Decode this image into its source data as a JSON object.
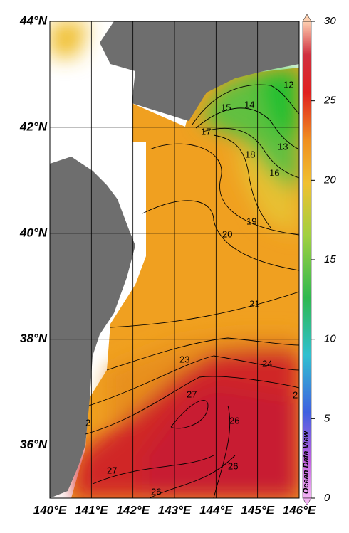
{
  "map": {
    "lon_ticks": [
      {
        "value": 140,
        "label": "140°E"
      },
      {
        "value": 141,
        "label": "141°E"
      },
      {
        "value": 142,
        "label": "142°E"
      },
      {
        "value": 143,
        "label": "143°E"
      },
      {
        "value": 144,
        "label": "144°E"
      },
      {
        "value": 145,
        "label": "145°E"
      },
      {
        "value": 146,
        "label": "146°E"
      }
    ],
    "lat_ticks": [
      {
        "value": 44,
        "label": "44°N"
      },
      {
        "value": 42,
        "label": "42°N"
      },
      {
        "value": 40,
        "label": "40°N"
      },
      {
        "value": 38,
        "label": "38°N"
      },
      {
        "value": 36,
        "label": "36°N"
      }
    ],
    "contour_labels": [
      "12",
      "13",
      "14",
      "15",
      "16",
      "17",
      "18",
      "19",
      "20",
      "21",
      "23",
      "24",
      "27",
      "26",
      "27",
      "26",
      "26",
      "2",
      "2"
    ],
    "colorbar": {
      "range": [
        0,
        30
      ],
      "ticks": [
        0,
        5,
        10,
        15,
        20,
        25,
        30
      ]
    },
    "credit": "Ocean Data View"
  }
}
